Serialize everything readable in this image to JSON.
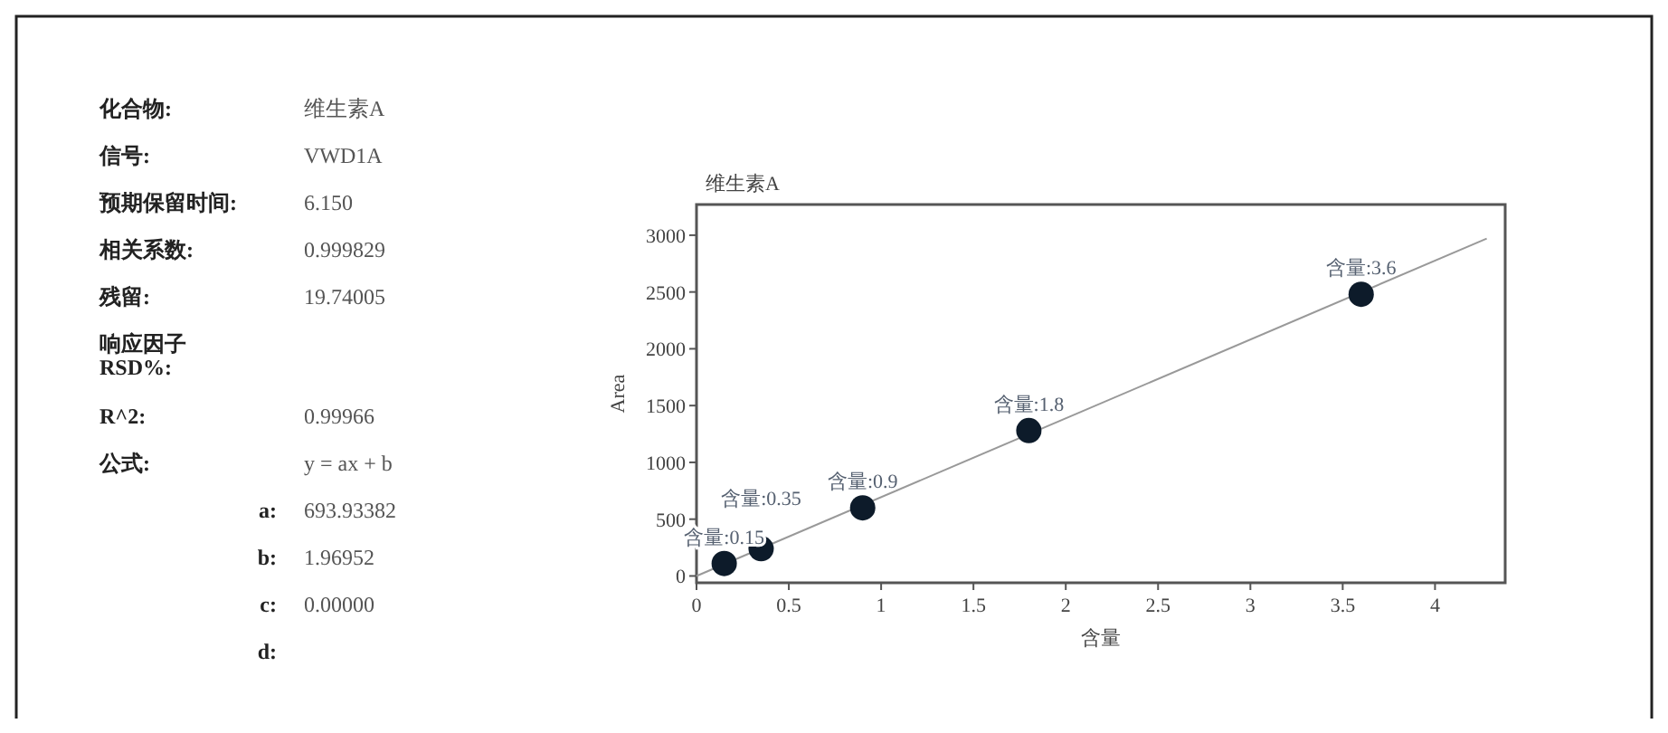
{
  "chart_data": [
    {
      "type": "other",
      "annotations": [
        "化合物:",
        "维生素A",
        "信号:",
        "VWD1A",
        "预期保留时间:",
        "6.150",
        "相关系数:",
        "0.999829",
        "残留:",
        "19.74005",
        "响应因子\nRSD%:",
        "R^2:",
        "0.99966",
        "公式:",
        "y = ax + b",
        "a:",
        "693.93382",
        "b:",
        "1.96952",
        "c:",
        "0.00000",
        "d:"
      ]
    },
    {
      "type": "scatter",
      "title": "维生素A",
      "xlabel": "含量",
      "ylabel": "Area",
      "xlim": [
        0,
        4.38
      ],
      "ylim": [
        -60,
        3270
      ],
      "xticks": [
        0,
        0.5,
        1,
        1.5,
        2,
        2.5,
        3,
        3.5,
        4
      ],
      "yticks": [
        0,
        500,
        1000,
        1500,
        2000,
        2500,
        3000
      ],
      "grid": false,
      "series": [
        {
          "type": "line",
          "color": "#999999",
          "x": [
            0,
            4.28
          ],
          "values": [
            0,
            2970
          ]
        },
        {
          "type": "scatter",
          "color": "#0d1b2a",
          "marker": "circle",
          "x": [
            0.15,
            0.35,
            0.9,
            1.8,
            3.6
          ],
          "values": [
            110,
            240,
            600,
            1280,
            2480
          ]
        }
      ],
      "annotations": [
        {
          "text": "含量:0.15",
          "x": 0.15,
          "y": 110
        },
        {
          "text": "含量:0.35",
          "x": 0.35,
          "y": 240
        },
        {
          "text": "含量:0.9",
          "x": 0.9,
          "y": 600
        },
        {
          "text": "含量:1.8",
          "x": 1.8,
          "y": 1280
        },
        {
          "text": "含量:3.6",
          "x": 3.6,
          "y": 2480
        }
      ]
    }
  ]
}
